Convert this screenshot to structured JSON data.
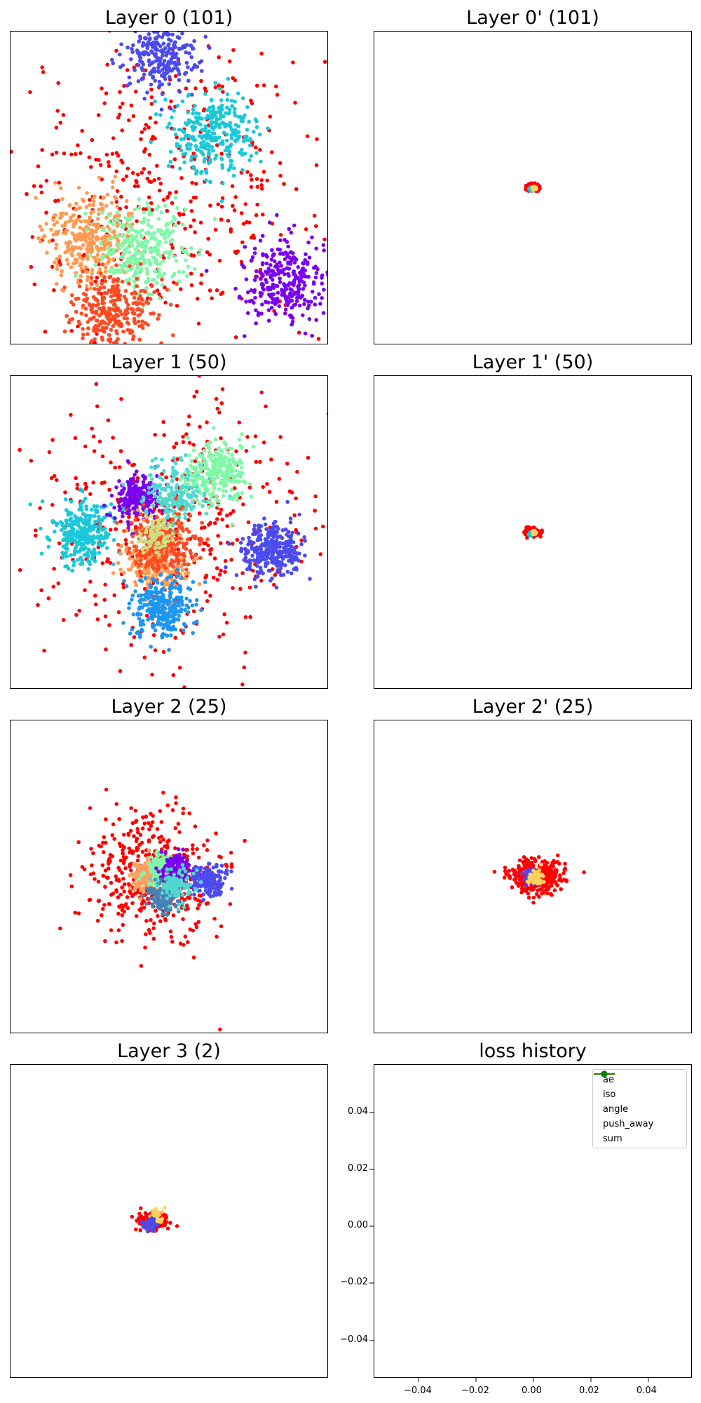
{
  "chart_data": [
    {
      "type": "scatter",
      "title": "Layer 0 (101)",
      "clusters": [
        {
          "color": "#4b4bf0",
          "cx": -0.05,
          "cy": 0.86,
          "spread": 0.12,
          "count": 260
        },
        {
          "color": "#1ac8d8",
          "cx": 0.3,
          "cy": 0.35,
          "spread": 0.13,
          "count": 300
        },
        {
          "color": "#ff9a50",
          "cx": -0.5,
          "cy": -0.32,
          "spread": 0.15,
          "count": 330
        },
        {
          "color": "#80f8a8",
          "cx": -0.15,
          "cy": -0.4,
          "spread": 0.14,
          "count": 300
        },
        {
          "color": "#7a00f0",
          "cx": 0.72,
          "cy": -0.6,
          "spread": 0.13,
          "count": 300
        },
        {
          "color": "#ff4a22",
          "cx": -0.35,
          "cy": -0.8,
          "spread": 0.13,
          "count": 300
        },
        {
          "color": "#ff0000",
          "cx": 0,
          "cy": 0,
          "spread": 0.5,
          "count": 420
        }
      ]
    },
    {
      "type": "scatter",
      "title": "Layer 0' (101)",
      "clusters": [
        {
          "color": "#ff0000",
          "cx": 0.0,
          "cy": 0.0,
          "spread": 0.018,
          "count": 260
        },
        {
          "color": "#1ac8d8",
          "cx": -0.01,
          "cy": -0.01,
          "spread": 0.006,
          "count": 30
        },
        {
          "color": "#ffd060",
          "cx": 0.01,
          "cy": -0.005,
          "spread": 0.006,
          "count": 30
        }
      ]
    },
    {
      "type": "scatter",
      "title": "Layer 1 (50)",
      "clusters": [
        {
          "color": "#1ac8d8",
          "cx": -0.55,
          "cy": 0.0,
          "spread": 0.1,
          "count": 300
        },
        {
          "color": "#7a00f0",
          "cx": -0.2,
          "cy": 0.22,
          "spread": 0.08,
          "count": 200
        },
        {
          "color": "#50d8d0",
          "cx": 0.05,
          "cy": 0.25,
          "spread": 0.1,
          "count": 200
        },
        {
          "color": "#80f8a8",
          "cx": 0.3,
          "cy": 0.38,
          "spread": 0.1,
          "count": 250
        },
        {
          "color": "#ff9a50",
          "cx": -0.08,
          "cy": -0.18,
          "spread": 0.1,
          "count": 250
        },
        {
          "color": "#ff4a22",
          "cx": -0.05,
          "cy": -0.08,
          "spread": 0.1,
          "count": 250
        },
        {
          "color": "#c8e080",
          "cx": -0.08,
          "cy": -0.02,
          "spread": 0.06,
          "count": 80
        },
        {
          "color": "#4b4bf0",
          "cx": 0.65,
          "cy": -0.12,
          "spread": 0.09,
          "count": 300
        },
        {
          "color": "#1e96f0",
          "cx": -0.05,
          "cy": -0.48,
          "spread": 0.09,
          "count": 300
        },
        {
          "color": "#ff0000",
          "cx": 0,
          "cy": 0,
          "spread": 0.45,
          "count": 420
        }
      ]
    },
    {
      "type": "scatter",
      "title": "Layer 1' (50)",
      "clusters": [
        {
          "color": "#ff0000",
          "cx": 0.0,
          "cy": 0.0,
          "spread": 0.02,
          "count": 260
        },
        {
          "color": "#1ac8d8",
          "cx": -0.01,
          "cy": -0.01,
          "spread": 0.006,
          "count": 30
        },
        {
          "color": "#ffd060",
          "cx": 0.01,
          "cy": -0.005,
          "spread": 0.006,
          "count": 30
        }
      ]
    },
    {
      "type": "scatter",
      "title": "Layer 2 (25)",
      "clusters": [
        {
          "color": "#ff0000",
          "cx": -0.1,
          "cy": 0.0,
          "spread": 0.22,
          "count": 420
        },
        {
          "color": "#ffa060",
          "cx": -0.15,
          "cy": 0.0,
          "spread": 0.05,
          "count": 160
        },
        {
          "color": "#80f8a8",
          "cx": -0.05,
          "cy": 0.05,
          "spread": 0.05,
          "count": 160
        },
        {
          "color": "#7a00f0",
          "cx": 0.05,
          "cy": 0.05,
          "spread": 0.05,
          "count": 140
        },
        {
          "color": "#4b4bf0",
          "cx": 0.25,
          "cy": -0.02,
          "spread": 0.05,
          "count": 160
        },
        {
          "color": "#4682b4",
          "cx": -0.03,
          "cy": -0.13,
          "spread": 0.05,
          "count": 140
        },
        {
          "color": "#50d8d0",
          "cx": 0.05,
          "cy": -0.05,
          "spread": 0.05,
          "count": 100
        }
      ]
    },
    {
      "type": "scatter",
      "title": "Layer 2' (25)",
      "clusters": [
        {
          "color": "#ff0000",
          "cx": 0.02,
          "cy": 0.0,
          "spread": 0.08,
          "count": 420
        },
        {
          "color": "#4b4bf0",
          "cx": -0.02,
          "cy": 0.0,
          "spread": 0.025,
          "count": 60
        },
        {
          "color": "#ffd060",
          "cx": 0.02,
          "cy": 0.0,
          "spread": 0.025,
          "count": 60
        }
      ]
    },
    {
      "type": "scatter",
      "title": "Layer 3 (2)",
      "clusters": [
        {
          "color": "#ff0000",
          "cx": -0.1,
          "cy": 0.0,
          "spread": 0.04,
          "count": 360
        },
        {
          "color": "#ffd060",
          "cx": -0.08,
          "cy": 0.03,
          "spread": 0.02,
          "count": 40
        },
        {
          "color": "#4b4bf0",
          "cx": -0.12,
          "cy": -0.02,
          "spread": 0.02,
          "count": 30
        }
      ]
    },
    {
      "type": "line",
      "title": "loss history",
      "x_ticks": [
        "−0.04",
        "−0.02",
        "0.00",
        "0.02",
        "0.04"
      ],
      "y_ticks": [
        "0.04",
        "0.02",
        "0.00",
        "−0.02",
        "−0.04"
      ],
      "xlim": [
        -0.055,
        0.055
      ],
      "ylim": [
        -0.055,
        0.055
      ],
      "legend_position": "upper right",
      "series": [
        {
          "name": "ae",
          "color": "#0000ff",
          "values": []
        },
        {
          "name": "iso",
          "color": "#000000",
          "values": []
        },
        {
          "name": "angle",
          "color": "#bfbf00",
          "values": []
        },
        {
          "name": "push_away",
          "color": "#ff0000",
          "values": []
        },
        {
          "name": "sum",
          "color": "#008000",
          "values": []
        }
      ]
    }
  ]
}
